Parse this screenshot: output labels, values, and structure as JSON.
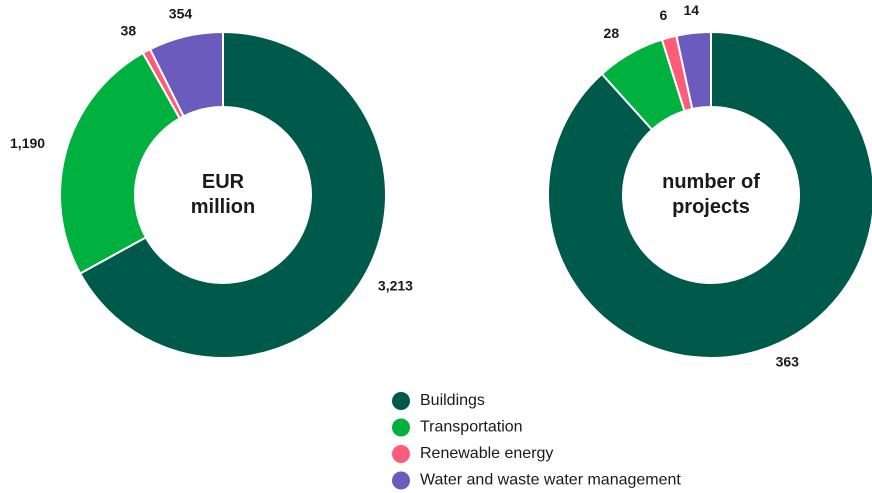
{
  "chart_data": [
    {
      "type": "pie",
      "center_label": [
        "EUR",
        "million"
      ],
      "values": [
        3213,
        1190,
        38,
        354
      ],
      "value_labels": [
        "3,213",
        "1,190",
        "38",
        "354"
      ]
    },
    {
      "type": "pie",
      "center_label": [
        "number of",
        "projects"
      ],
      "values": [
        363,
        28,
        6,
        14
      ]
    }
  ],
  "legend": {
    "categories": [
      "Buildings",
      "Transportation",
      "Renewable energy",
      "Water and waste water management"
    ],
    "colors": [
      "#005a4b",
      "#00b140",
      "#ff5c7a",
      "#6a5bbd"
    ]
  }
}
